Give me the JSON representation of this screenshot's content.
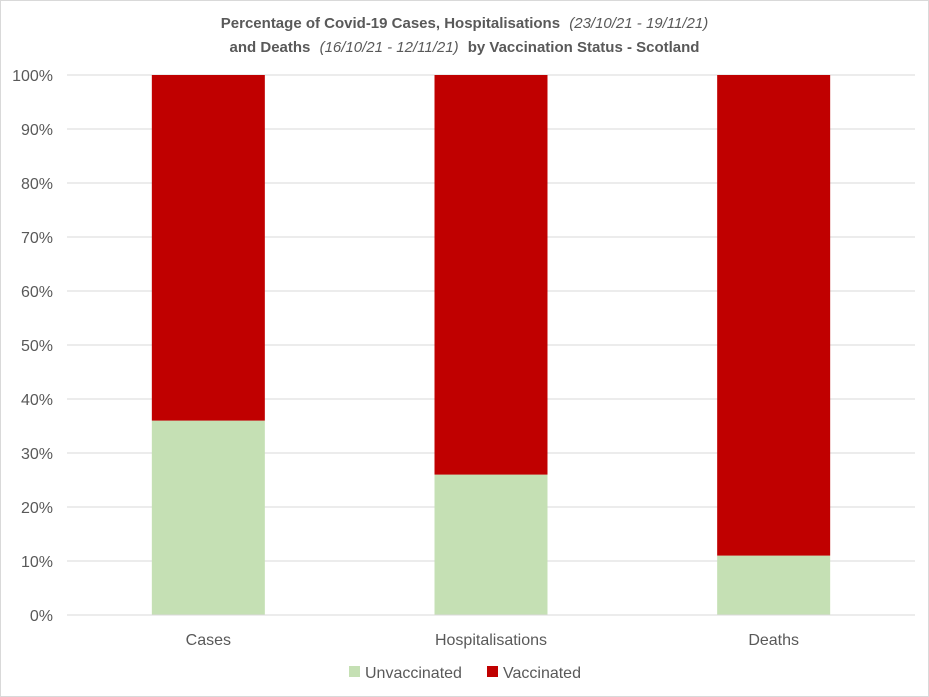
{
  "chart_data": {
    "type": "bar",
    "stacked": true,
    "title_line1": {
      "bold": "Percentage of Covid-19 Cases, Hospitalisations",
      "italic": "(23/10/21 - 19/11/21)"
    },
    "title_line2": {
      "bold": "and Deaths",
      "italic": "(16/10/21 - 12/11/21)",
      "bold2": "by Vaccination Status - Scotland"
    },
    "categories": [
      "Cases",
      "Hospitalisations",
      "Deaths"
    ],
    "series": [
      {
        "name": "Unvaccinated",
        "values": [
          36,
          26,
          11
        ],
        "color": "#c5e0b4"
      },
      {
        "name": "Vaccinated",
        "values": [
          64,
          74,
          89
        ],
        "color": "#c00000"
      }
    ],
    "ylim": [
      0,
      100
    ],
    "y_ticks": [
      "0%",
      "10%",
      "20%",
      "30%",
      "40%",
      "50%",
      "60%",
      "70%",
      "80%",
      "90%",
      "100%"
    ],
    "grid": true,
    "legend_position": "bottom",
    "gridline_color": "#d9d9d9"
  }
}
